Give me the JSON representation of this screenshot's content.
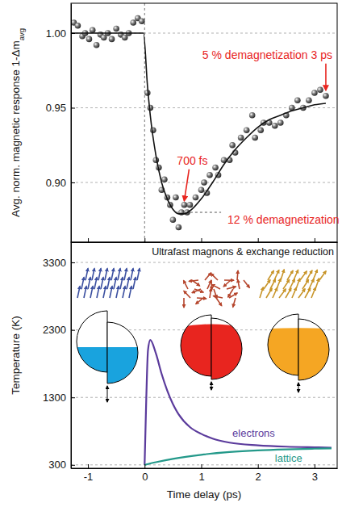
{
  "chart_data": [
    {
      "type": "scatter",
      "ylabel": "Avg. norm. magnetic response 1-Δm",
      "ylabel_subscript": "avg",
      "xlim": [
        -1.3,
        3.4
      ],
      "xticks": [
        -1,
        0,
        1,
        2,
        3
      ],
      "ylim": [
        0.86,
        1.02
      ],
      "yticks": [
        {
          "value": 0.9,
          "label": "0.90"
        },
        {
          "value": 0.95,
          "label": "0.95"
        },
        {
          "value": 1,
          "label": "1.00"
        }
      ],
      "grid": true,
      "tick_labels": "y",
      "series": [
        {
          "type": "scatter",
          "marker": "circle",
          "color": "#2b2b2b",
          "x": [
            -1.25,
            -1.18,
            -1.1,
            -1.05,
            -0.98,
            -0.92,
            -0.85,
            -0.78,
            -0.72,
            -0.65,
            -0.58,
            -0.5,
            -0.42,
            -0.35,
            -0.28,
            -0.2,
            -0.12,
            -0.05,
            0.05,
            0.1,
            0.15,
            0.2,
            0.25,
            0.3,
            0.35,
            0.4,
            0.45,
            0.5,
            0.55,
            0.6,
            0.65,
            0.7,
            0.75,
            0.8,
            0.9,
            1.0,
            1.05,
            1.1,
            1.15,
            1.25,
            1.3,
            1.4,
            1.5,
            1.55,
            1.6,
            1.7,
            1.8,
            1.9,
            1.95,
            2.05,
            2.1,
            2.2,
            2.3,
            2.4,
            2.5,
            2.6,
            2.7,
            2.8,
            2.9,
            3.0,
            3.1,
            3.2
          ],
          "values": [
            1.007,
            1.005,
            0.998,
            1.0,
            0.996,
            1.002,
            0.992,
            0.999,
            0.997,
            1.0,
            0.996,
            1.003,
            0.999,
            0.997,
            1.0,
            1.007,
            1.01,
            1.008,
            0.96,
            0.95,
            0.935,
            0.915,
            0.91,
            0.895,
            0.902,
            0.89,
            0.885,
            0.875,
            0.89,
            0.87,
            0.88,
            0.885,
            0.88,
            0.885,
            0.89,
            0.895,
            0.9,
            0.893,
            0.905,
            0.91,
            0.905,
            0.915,
            0.915,
            0.925,
            0.92,
            0.93,
            0.935,
            0.945,
            0.93,
            0.935,
            0.94,
            0.94,
            0.938,
            0.94,
            0.945,
            0.95,
            0.955,
            0.95,
            0.955,
            0.96,
            0.962,
            0.958
          ]
        },
        {
          "type": "line",
          "color": "#111111",
          "x": [
            -1.3,
            -0.02,
            0.05,
            0.1,
            0.2,
            0.3,
            0.4,
            0.5,
            0.6,
            0.7,
            0.8,
            1.0,
            1.2,
            1.4,
            1.6,
            1.8,
            2.0,
            2.2,
            2.4,
            2.6,
            2.8,
            3.0,
            3.2
          ],
          "values": [
            1.0,
            1.0,
            0.965,
            0.945,
            0.918,
            0.9,
            0.889,
            0.882,
            0.879,
            0.879,
            0.881,
            0.889,
            0.9,
            0.912,
            0.922,
            0.93,
            0.937,
            0.942,
            0.945,
            0.948,
            0.95,
            0.952,
            0.953
          ]
        }
      ],
      "reference_lines": [
        {
          "x": 0
        },
        {
          "y": 0.88,
          "x": [
            0.55,
            1.35
          ]
        }
      ],
      "annotations": [
        {
          "text": "5 % demagnetization 3 ps",
          "color": "#e8251f",
          "xy": [
            3.2,
            0.958
          ]
        },
        {
          "text": "700 fs",
          "color": "#e8251f",
          "xy": [
            0.7,
            0.884
          ]
        },
        {
          "text": "12 % demagnetization",
          "color": "#e8251f"
        }
      ]
    },
    {
      "type": "line",
      "title": "Ultrafast magnons & exchange reduction",
      "xlabel": "Time delay (ps)",
      "ylabel": "Temperature (K)",
      "xlim": [
        -1.3,
        3.4
      ],
      "xticks": [
        -1,
        0,
        1,
        2,
        3
      ],
      "ylim": [
        250,
        3600
      ],
      "yticks": [
        300,
        1300,
        2300,
        3300
      ],
      "grid": true,
      "series": [
        {
          "name": "electrons",
          "color": "#5b3b9c",
          "x": [
            0,
            0.03,
            0.06,
            0.1,
            0.2,
            0.3,
            0.4,
            0.5,
            0.6,
            0.8,
            1.0,
            1.2,
            1.5,
            2.0,
            2.5,
            3.0,
            3.3
          ],
          "values": [
            300,
            1300,
            2000,
            2150,
            1950,
            1650,
            1400,
            1200,
            1050,
            860,
            760,
            690,
            630,
            590,
            570,
            560,
            555
          ]
        },
        {
          "name": "lattice",
          "color": "#24998a",
          "x": [
            0,
            0.2,
            0.5,
            1.0,
            1.5,
            2.0,
            2.5,
            3.0,
            3.3
          ],
          "values": [
            300,
            340,
            390,
            450,
            490,
            515,
            530,
            540,
            545
          ]
        }
      ]
    }
  ]
}
